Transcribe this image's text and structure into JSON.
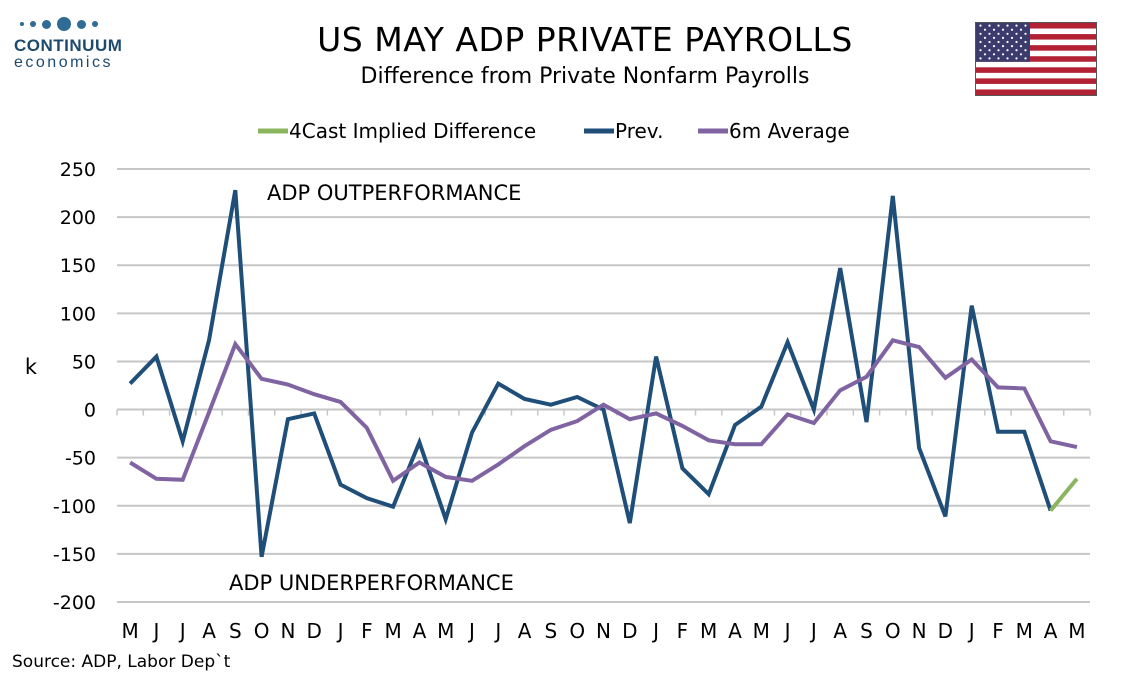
{
  "logo": {
    "name": "CONTINUUM",
    "sub": "economics"
  },
  "header": {
    "title": "US MAY ADP PRIVATE PAYROLLS",
    "subtitle": "Difference from Private Nonfarm Payrolls"
  },
  "flag": {
    "name": "us-flag",
    "colors": {
      "red": "#b22234",
      "white": "#ffffff",
      "blue": "#3c3b6e"
    }
  },
  "source": "Source: ADP, Labor Dep`t",
  "chart_data": {
    "type": "line",
    "ylabel": "k",
    "ylim": [
      -200,
      250
    ],
    "yticks": [
      250,
      200,
      150,
      100,
      50,
      0,
      -50,
      -100,
      -150,
      -200
    ],
    "grid": true,
    "legend_position": "top",
    "categories": [
      "M",
      "J",
      "J",
      "A",
      "S",
      "O",
      "N",
      "D",
      "J",
      "F",
      "M",
      "A",
      "M",
      "J",
      "J",
      "A",
      "S",
      "O",
      "N",
      "D",
      "J",
      "F",
      "M",
      "A",
      "M",
      "J",
      "J",
      "A",
      "S",
      "O",
      "N",
      "D",
      "J",
      "F",
      "M",
      "A",
      "M"
    ],
    "annotations": [
      "ADP OUTPERFORMANCE",
      "ADP UNDERPERFORMANCE"
    ],
    "series": [
      {
        "name": "4Cast Implied Difference",
        "color": "#8cb560",
        "values": [
          null,
          null,
          null,
          null,
          null,
          null,
          null,
          null,
          null,
          null,
          null,
          null,
          null,
          null,
          null,
          null,
          null,
          null,
          null,
          null,
          null,
          null,
          null,
          null,
          null,
          null,
          null,
          null,
          null,
          null,
          null,
          null,
          null,
          null,
          null,
          -105,
          -72
        ]
      },
      {
        "name": "Prev.",
        "color": "#1f4e79",
        "values": [
          27,
          55,
          -33,
          72,
          228,
          -153,
          -10,
          -4,
          -78,
          -92,
          -101,
          -34,
          -114,
          -24,
          27,
          11,
          5,
          13,
          0,
          -118,
          55,
          -61,
          -88,
          -16,
          3,
          70,
          0,
          147,
          -13,
          222,
          -40,
          -111,
          108,
          -23,
          -23,
          -105,
          null
        ]
      },
      {
        "name": "6m Average",
        "color": "#8064a2",
        "values": [
          -55,
          -72,
          -73,
          -3,
          68,
          32,
          26,
          16,
          8,
          -19,
          -74,
          -55,
          -70,
          -74,
          -57,
          -38,
          -21,
          -12,
          5,
          -10,
          -4,
          -17,
          -32,
          -36,
          -36,
          -5,
          -14,
          20,
          34,
          72,
          65,
          33,
          52,
          23,
          22,
          -33,
          -39
        ]
      }
    ]
  }
}
